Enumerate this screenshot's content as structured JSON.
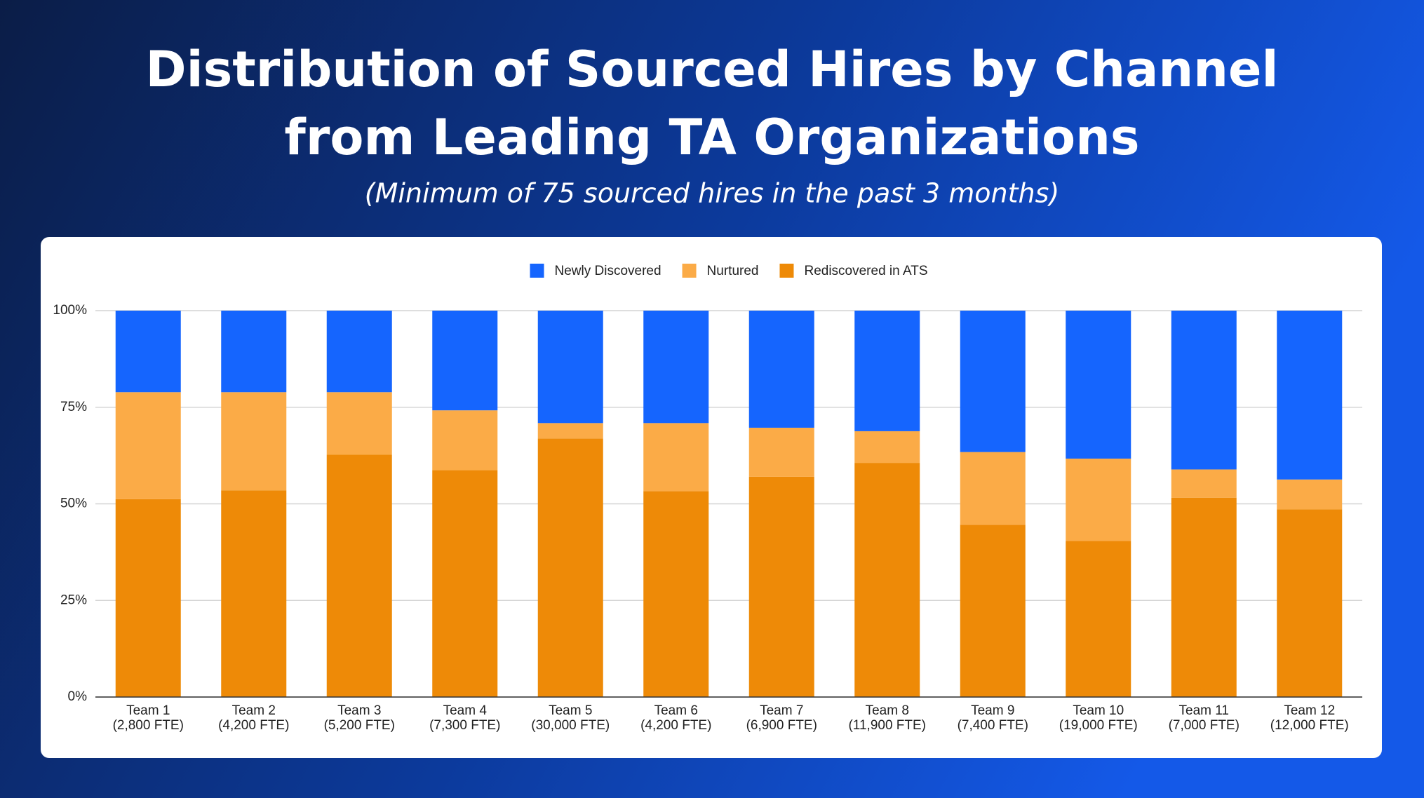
{
  "chart_data": {
    "type": "stacked-bar",
    "title": [
      "Distribution of Sourced Hires by Channel",
      "from Leading TA Organizations"
    ],
    "subtitle": "(Minimum of 75 sourced hires in the past 3 months)",
    "categories": [
      [
        "Team 1",
        "(2,800 FTE)"
      ],
      [
        "Team 2",
        "(4,200 FTE)"
      ],
      [
        "Team 3",
        "(5,200 FTE)"
      ],
      [
        "Team 4",
        "(7,300 FTE)"
      ],
      [
        "Team 5",
        "(30,000 FTE)"
      ],
      [
        "Team 6",
        "(4,200 FTE)"
      ],
      [
        "Team 7",
        "(6,900 FTE)"
      ],
      [
        "Team 8",
        "(11,900 FTE)"
      ],
      [
        "Team 9",
        "(7,400 FTE)"
      ],
      [
        "Team 10",
        "(19,000 FTE)"
      ],
      [
        "Team 11",
        "(7,000 FTE)"
      ],
      [
        "Team 12",
        "(12,000 FTE)"
      ]
    ],
    "series": [
      {
        "name": "Newly Discovered",
        "color": "#1565fe",
        "values": [
          21.1,
          21.1,
          21.1,
          25.8,
          29.1,
          29.1,
          30.3,
          31.2,
          36.6,
          38.3,
          41.1,
          43.7
        ]
      },
      {
        "name": "Nurtured",
        "color": "#fbab47",
        "values": [
          27.7,
          25.4,
          16.2,
          15.5,
          4.0,
          17.6,
          12.7,
          8.2,
          18.8,
          21.3,
          7.3,
          7.7
        ]
      },
      {
        "name": "Rediscovered in ATS",
        "color": "#ee8a07",
        "values": [
          51.2,
          53.5,
          62.7,
          58.7,
          66.9,
          53.3,
          57.0,
          60.6,
          44.6,
          40.4,
          51.6,
          48.6
        ]
      }
    ],
    "ylim": [
      0,
      100
    ],
    "yticks": [
      {
        "value": 0,
        "label": "0%"
      },
      {
        "value": 25,
        "label": "25%"
      },
      {
        "value": 50,
        "label": "50%"
      },
      {
        "value": 75,
        "label": "75%"
      },
      {
        "value": 100,
        "label": "100%"
      }
    ],
    "grid": true,
    "legend": "top"
  }
}
